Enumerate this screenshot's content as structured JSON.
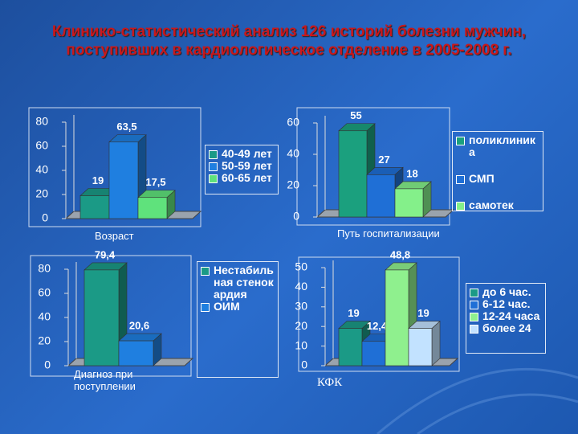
{
  "title": "Клинико-статистический анализ 126 историй болезни мужчин, поступивших в кардиологическое отделение в 2005-2008 г.",
  "chart_data": [
    {
      "type": "bar",
      "x_label": "Возраст",
      "categories": [
        null
      ],
      "series": [
        {
          "name": "40-49 лет",
          "color": "#1b9a86",
          "values": [
            19
          ],
          "value_labels": [
            "19"
          ]
        },
        {
          "name": "50-59 лет",
          "color": "#1f7fe0",
          "values": [
            63.5
          ],
          "value_labels": [
            "63,5"
          ]
        },
        {
          "name": "60-65 лет",
          "color": "#5fe27c",
          "values": [
            17.5
          ],
          "value_labels": [
            "17,5"
          ]
        }
      ],
      "ylim": [
        0,
        80
      ],
      "yticks": [
        0,
        20,
        40,
        60,
        80
      ],
      "legend": "right"
    },
    {
      "type": "bar",
      "x_label": "Путь госпитализации",
      "categories": [
        null
      ],
      "series": [
        {
          "name": "поликлиника",
          "color": "#1ba07e",
          "values": [
            55
          ]
        },
        {
          "name": "СМП",
          "color": "#1f6fd6",
          "values": [
            27
          ]
        },
        {
          "name": "самотек",
          "color": "#84f08a",
          "values": [
            18
          ]
        }
      ],
      "ylim": [
        0,
        60
      ],
      "yticks": [
        0,
        20,
        40,
        60
      ],
      "legend": "right"
    },
    {
      "type": "bar",
      "x_label": "Диагноз при поступлении",
      "categories": [
        null
      ],
      "series": [
        {
          "name": "Нестабильная стенокардия",
          "color": "#1b9a86",
          "values": [
            79.4
          ],
          "value_labels": [
            "79,4"
          ]
        },
        {
          "name": "ОИМ",
          "color": "#1f7fe0",
          "values": [
            20.6
          ],
          "value_labels": [
            "20,6"
          ]
        }
      ],
      "ylim": [
        0,
        80
      ],
      "yticks": [
        0,
        20,
        40,
        60,
        80
      ],
      "legend": "right"
    },
    {
      "type": "bar",
      "x_label": "КФК",
      "categories": [
        null
      ],
      "series": [
        {
          "name": "до 6 час.",
          "color": "#1b9a86",
          "values": [
            19
          ]
        },
        {
          "name": "6-12 час.",
          "color": "#1f6fd6",
          "values": [
            12.4
          ],
          "value_labels": [
            "12,4"
          ]
        },
        {
          "name": "12-24 часа",
          "color": "#8ff08e",
          "values": [
            48.8
          ],
          "value_labels": [
            "48,8"
          ]
        },
        {
          "name": "более 24",
          "color": "#c2e2ff",
          "values": [
            19
          ]
        }
      ],
      "ylim": [
        0,
        50
      ],
      "yticks": [
        0,
        10,
        20,
        30,
        40,
        50
      ],
      "legend": "right"
    }
  ]
}
